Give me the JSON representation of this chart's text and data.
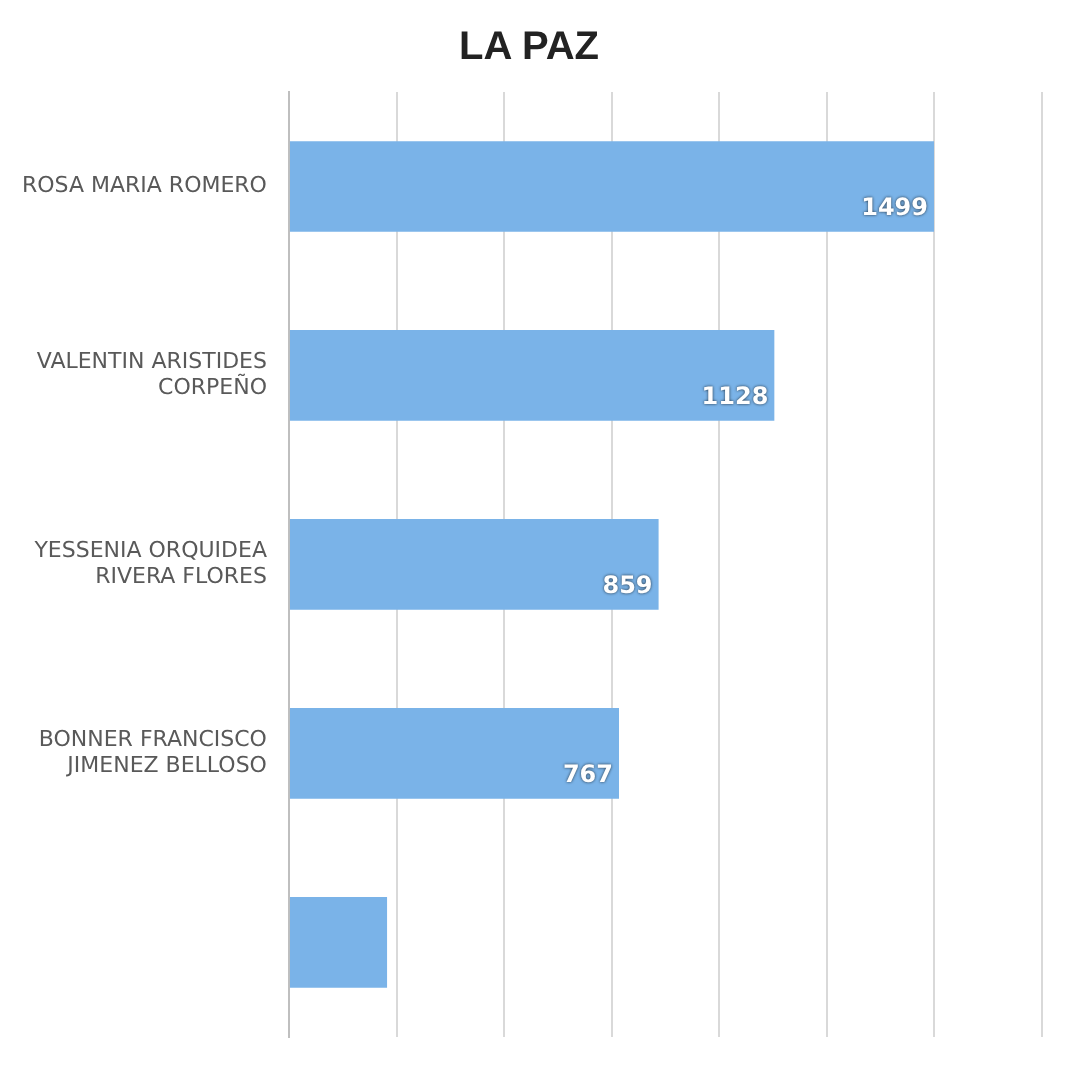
{
  "chart_data": {
    "type": "bar",
    "orientation": "horizontal",
    "title": "LA PAZ",
    "categories": [
      "ROSA MARIA ROMERO",
      "VALENTIN ARISTIDES CORPEÑO",
      "YESSENIA ORQUIDEA RIVERA FLORES",
      "BONNER FRANCISCO JIMENEZ BELLOSO",
      null
    ],
    "values": [
      1499,
      1128,
      859,
      767,
      228
    ],
    "value_labels": [
      "1499",
      "1128",
      "859",
      "767",
      null
    ],
    "color": "#7ab3e8",
    "xlim": [
      0,
      1750
    ],
    "xticks": [
      {
        "value": 0,
        "label": null
      },
      {
        "value": 250,
        "label": null
      },
      {
        "value": 500,
        "label": null
      },
      {
        "value": 750,
        "label": null
      },
      {
        "value": 1000,
        "label": null
      },
      {
        "value": 1250,
        "label": null
      },
      {
        "value": 1500,
        "label": null
      },
      {
        "value": 1750,
        "label": null
      }
    ],
    "tick_labels": "y",
    "grid": "x",
    "legend": false
  }
}
